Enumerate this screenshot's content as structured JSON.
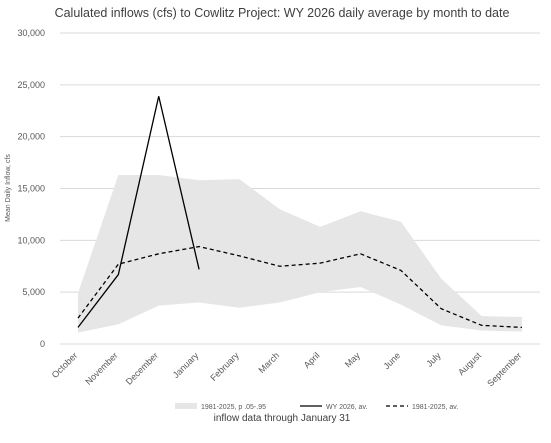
{
  "chart_data": {
    "type": "line",
    "title": "Calulated inflows (cfs) to Cowlitz Project: WY 2026 daily average by month to date",
    "xlabel": "",
    "ylabel": "Mean Daily Inflow, cfs",
    "ylim": [
      0,
      30000
    ],
    "yticks": [
      0,
      5000,
      10000,
      15000,
      20000,
      25000,
      30000
    ],
    "ytick_labels": [
      "0",
      "5,000",
      "10,000",
      "15,000",
      "20,000",
      "25,000",
      "30,000"
    ],
    "grid": true,
    "legend_position": "bottom",
    "categories": [
      "October",
      "November",
      "December",
      "January",
      "February",
      "March",
      "April",
      "May",
      "June",
      "July",
      "August",
      "September"
    ],
    "band": {
      "name": "1981-2025, p .05-.95",
      "lower": [
        1100,
        1900,
        3700,
        4000,
        3500,
        4000,
        5000,
        5500,
        3800,
        1800,
        1300,
        1200
      ],
      "upper": [
        4900,
        16300,
        16300,
        15800,
        15900,
        13000,
        11300,
        12800,
        11800,
        6300,
        2700,
        2600
      ],
      "color": "#e6e6e6"
    },
    "series": [
      {
        "name": "WY 2026, av.",
        "values": [
          1600,
          6700,
          23900,
          7200,
          null,
          null,
          null,
          null,
          null,
          null,
          null,
          null
        ],
        "color": "#000000",
        "dash": "solid"
      },
      {
        "name": "1981-2025, av.",
        "values": [
          2500,
          7700,
          8700,
          9400,
          8500,
          7500,
          7800,
          8700,
          7100,
          3400,
          1800,
          1600
        ],
        "color": "#000000",
        "dash": "dashed"
      }
    ],
    "note": "inflow data through January 31"
  }
}
